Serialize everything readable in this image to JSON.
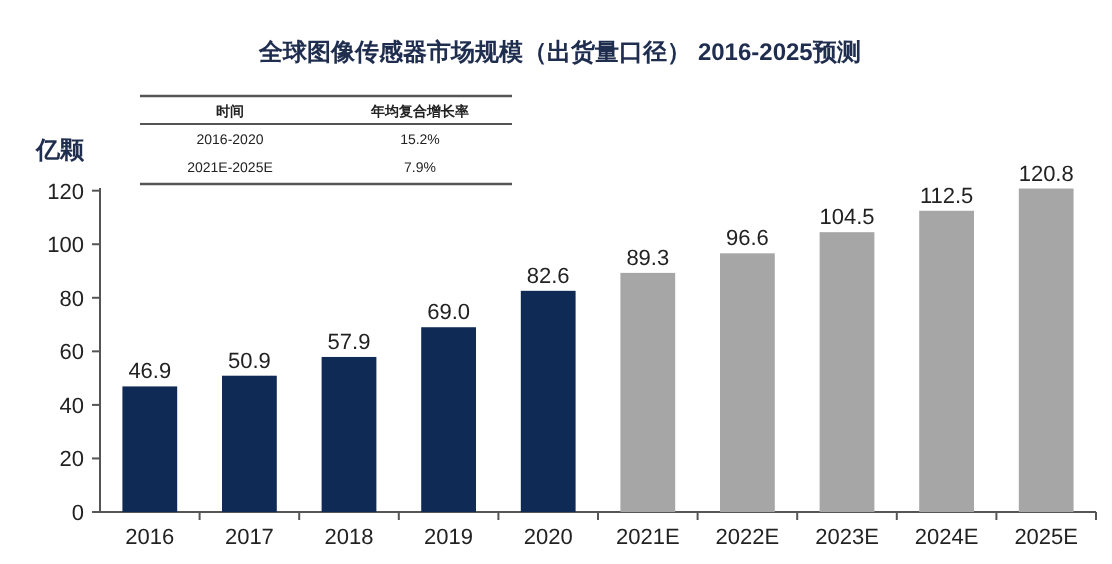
{
  "chart_data": {
    "type": "bar",
    "title": "全球图像传感器市场规模（出货量口径） 2016-2025预测",
    "ylabel": "亿颗",
    "categories": [
      "2016",
      "2017",
      "2018",
      "2019",
      "2020",
      "2021E",
      "2022E",
      "2023E",
      "2024E",
      "2025E"
    ],
    "values": [
      46.9,
      50.9,
      57.9,
      69.0,
      82.6,
      89.3,
      96.6,
      104.5,
      112.5,
      120.8
    ],
    "colors": [
      "#0e2a55",
      "#0e2a55",
      "#0e2a55",
      "#0e2a55",
      "#0e2a55",
      "#a6a6a6",
      "#a6a6a6",
      "#a6a6a6",
      "#a6a6a6",
      "#a6a6a6"
    ],
    "value_labels": [
      "46.9",
      "50.9",
      "57.9",
      "69.0",
      "82.6",
      "89.3",
      "96.6",
      "104.5",
      "112.5",
      "120.8"
    ],
    "ylim": [
      0,
      121
    ],
    "yticks": [
      0,
      20,
      40,
      60,
      80,
      100,
      120
    ],
    "grid": false,
    "annotations": [
      "时间",
      "年均复合增长率",
      "2016-2020",
      "15.2%",
      "2021E-2025E",
      "7.9%"
    ]
  }
}
